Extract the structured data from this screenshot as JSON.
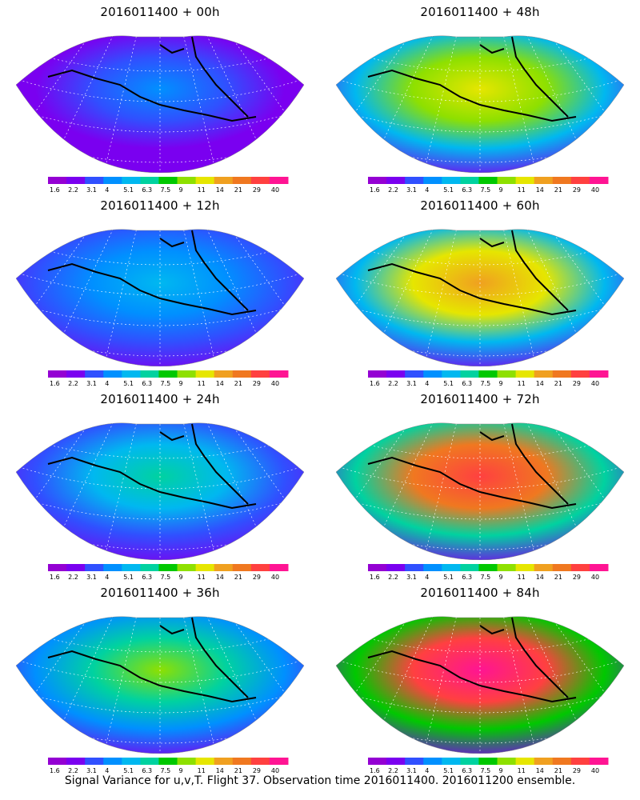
{
  "panels": [
    {
      "title": "2016011400 + 00h",
      "intensity": 0.15
    },
    {
      "title": "2016011400 + 48h",
      "intensity": 0.55
    },
    {
      "title": "2016011400 + 12h",
      "intensity": 0.25
    },
    {
      "title": "2016011400 + 60h",
      "intensity": 0.65
    },
    {
      "title": "2016011400 + 24h",
      "intensity": 0.35
    },
    {
      "title": "2016011400 + 72h",
      "intensity": 0.8
    },
    {
      "title": "2016011400 + 36h",
      "intensity": 0.45
    },
    {
      "title": "2016011400 + 84h",
      "intensity": 0.9
    }
  ],
  "colorbar": {
    "tick_labels": [
      "1.6",
      "2.2",
      "3.1",
      "4",
      "5.1",
      "6.3",
      "7.5",
      "9",
      "11",
      "14",
      "21",
      "29",
      "40"
    ],
    "colors": [
      "#9400d3",
      "#7a00f0",
      "#3050ff",
      "#0090ff",
      "#00b8f0",
      "#00d2a0",
      "#00c800",
      "#8ee000",
      "#e6e600",
      "#f0a020",
      "#f07820",
      "#ff4040",
      "#ff1493"
    ]
  },
  "caption": "Signal Variance for u,v,T. Flight 37. Observation time 2016011400. 2016011200 ensemble."
}
